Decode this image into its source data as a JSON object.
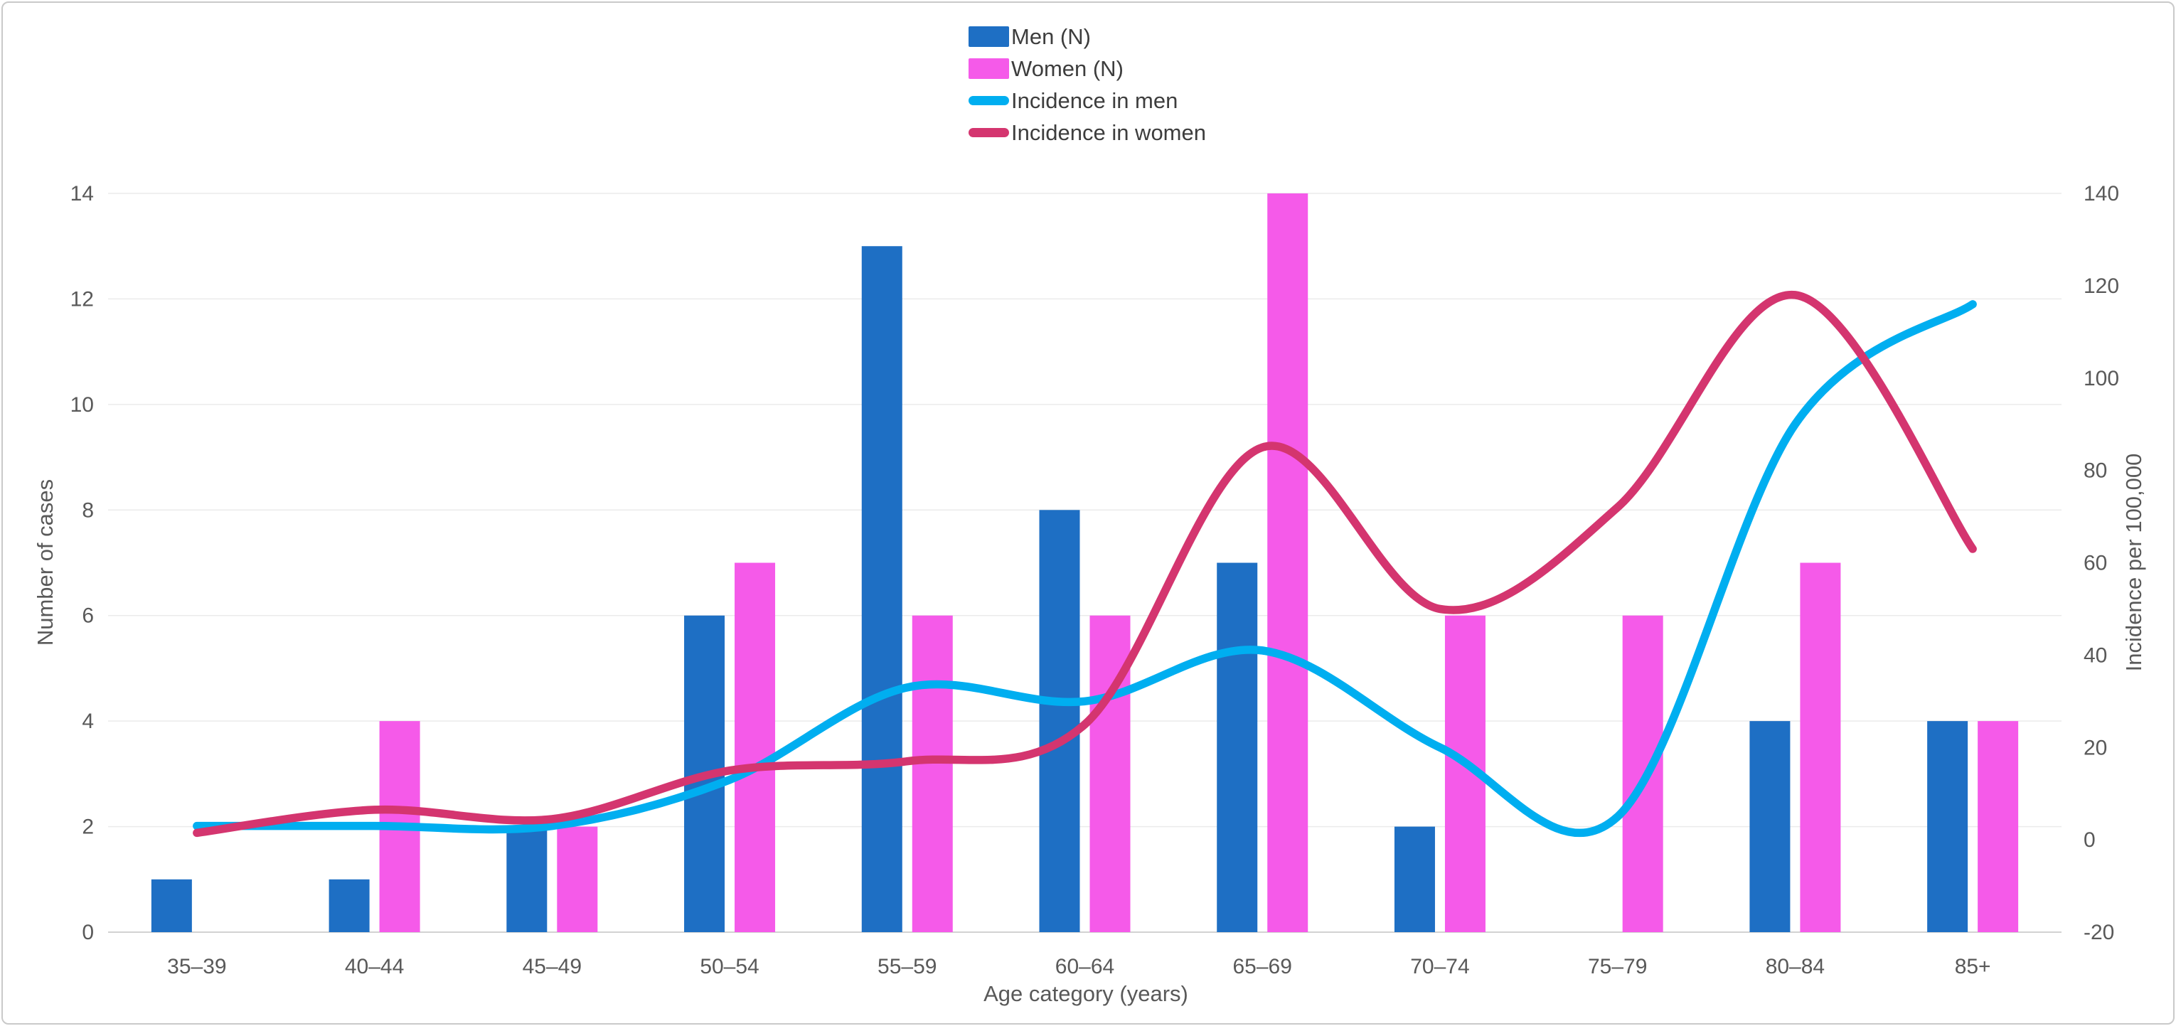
{
  "chart_data": {
    "type": "bar+line combo",
    "categories": [
      "35–39",
      "40–44",
      "45–49",
      "50–54",
      "55–59",
      "60–64",
      "65–69",
      "70–74",
      "75–79",
      "80–84",
      "85+"
    ],
    "series": [
      {
        "name": "Men (N)",
        "type": "bar",
        "axis": "left",
        "color": "#1E6FC4",
        "values": [
          1,
          1,
          2,
          6,
          13,
          8,
          7,
          2,
          0,
          4,
          4
        ]
      },
      {
        "name": "Women (N)",
        "type": "bar",
        "axis": "left",
        "color": "#F55AE9",
        "values": [
          0,
          4,
          2,
          7,
          6,
          6,
          14,
          6,
          6,
          7,
          4
        ]
      },
      {
        "name": "Incidence in men",
        "type": "line",
        "axis": "right",
        "color": "#00AEF0",
        "values": [
          3,
          3,
          3,
          13,
          33,
          30,
          41,
          20,
          5,
          90,
          116
        ]
      },
      {
        "name": "Incidence in women",
        "type": "line",
        "axis": "right",
        "color": "#D4356F",
        "values": [
          1.5,
          6.5,
          4.5,
          15,
          17,
          25,
          85,
          50,
          72,
          118,
          63
        ]
      }
    ],
    "xlabel": "Age category (years)",
    "left_axis": {
      "label": "Number of cases",
      "min": 0,
      "max": 14,
      "step": 2,
      "ticks": [
        "0",
        "2",
        "4",
        "6",
        "8",
        "10",
        "12",
        "14"
      ]
    },
    "right_axis": {
      "label": "Incidence per 100,000",
      "min": -20,
      "max": 140,
      "step": 20,
      "ticks": [
        "-20",
        "0",
        "20",
        "40",
        "60",
        "80",
        "100",
        "120",
        "140"
      ]
    },
    "grid": true,
    "legend_position": "top-center",
    "colors": {
      "gridline": "#ebebeb",
      "axis_line": "#d2d2d2",
      "tick_text": "#595959",
      "legend_text": "#3d3d3d",
      "background": "#ffffff"
    }
  }
}
